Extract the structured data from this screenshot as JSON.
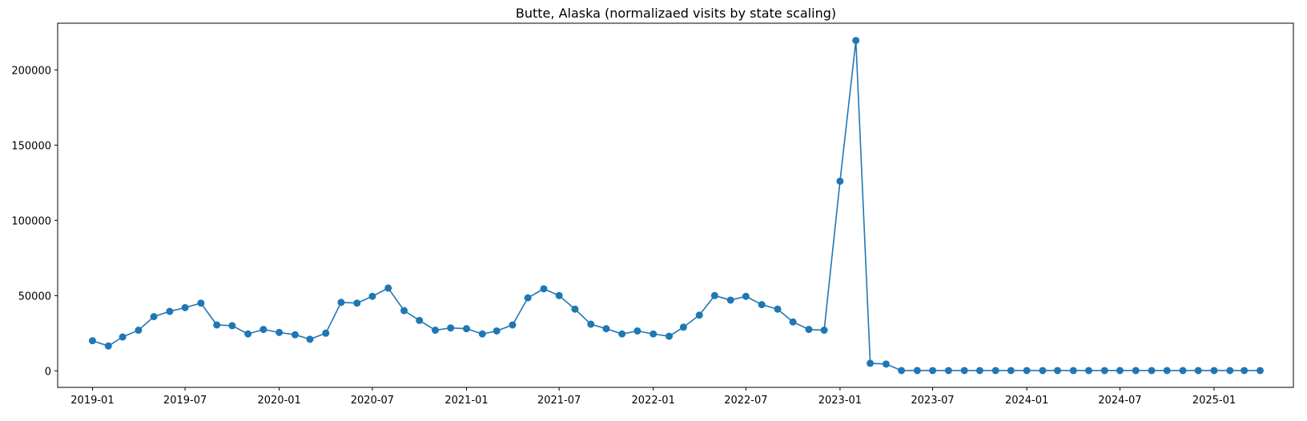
{
  "chart_data": {
    "type": "line",
    "title": "Butte, Alaska (normalizaed visits by state scaling)",
    "xlabel": "",
    "ylabel": "",
    "color": "#1f77b4",
    "marker": "circle",
    "grid": false,
    "legend": "none",
    "xlim": [
      "2018-10-25",
      "2025-06-05"
    ],
    "ylim": [
      -11000,
      231000
    ],
    "x_ticks": [
      "2019-01",
      "2019-07",
      "2020-01",
      "2020-07",
      "2021-01",
      "2021-07",
      "2022-01",
      "2022-07",
      "2023-01",
      "2023-07",
      "2024-01",
      "2024-07",
      "2025-01"
    ],
    "y_ticks": [
      0,
      50000,
      100000,
      150000,
      200000
    ],
    "series": [
      {
        "x": [
          "2019-01",
          "2019-02",
          "2019-03",
          "2019-04",
          "2019-05",
          "2019-06",
          "2019-07",
          "2019-08",
          "2019-09",
          "2019-10",
          "2019-11",
          "2019-12",
          "2020-01",
          "2020-02",
          "2020-03",
          "2020-04",
          "2020-05",
          "2020-06",
          "2020-07",
          "2020-08",
          "2020-09",
          "2020-10",
          "2020-11",
          "2020-12",
          "2021-01",
          "2021-02",
          "2021-03",
          "2021-04",
          "2021-05",
          "2021-06",
          "2021-07",
          "2021-08",
          "2021-09",
          "2021-10",
          "2021-11",
          "2021-12",
          "2022-01",
          "2022-02",
          "2022-03",
          "2022-04",
          "2022-05",
          "2022-06",
          "2022-07",
          "2022-08",
          "2022-09",
          "2022-10",
          "2022-11",
          "2022-12",
          "2023-01",
          "2023-02",
          "2023-03",
          "2023-04",
          "2023-05",
          "2023-06",
          "2023-07",
          "2023-08",
          "2023-09",
          "2023-10",
          "2023-11",
          "2023-12",
          "2024-01",
          "2024-02",
          "2024-03",
          "2024-04",
          "2024-05",
          "2024-06",
          "2024-07",
          "2024-08",
          "2024-09",
          "2024-10",
          "2024-11",
          "2024-12",
          "2025-01",
          "2025-02",
          "2025-03",
          "2025-04"
        ],
        "values": [
          20000,
          16500,
          22500,
          27000,
          36000,
          39500,
          42000,
          45000,
          30500,
          30000,
          24500,
          27500,
          25500,
          24000,
          21000,
          25000,
          45500,
          45000,
          49500,
          55000,
          40000,
          33500,
          27000,
          28500,
          28000,
          24500,
          26500,
          30500,
          48500,
          54500,
          50000,
          41000,
          31000,
          28000,
          24500,
          26500,
          24500,
          23000,
          29000,
          37000,
          50000,
          47000,
          49500,
          44000,
          41000,
          32500,
          27500,
          27000,
          126000,
          219500,
          5000,
          4500,
          200,
          200,
          200,
          200,
          200,
          200,
          200,
          200,
          200,
          200,
          200,
          200,
          200,
          200,
          200,
          200,
          200,
          200,
          200,
          200,
          200,
          200,
          200,
          200
        ]
      }
    ]
  }
}
